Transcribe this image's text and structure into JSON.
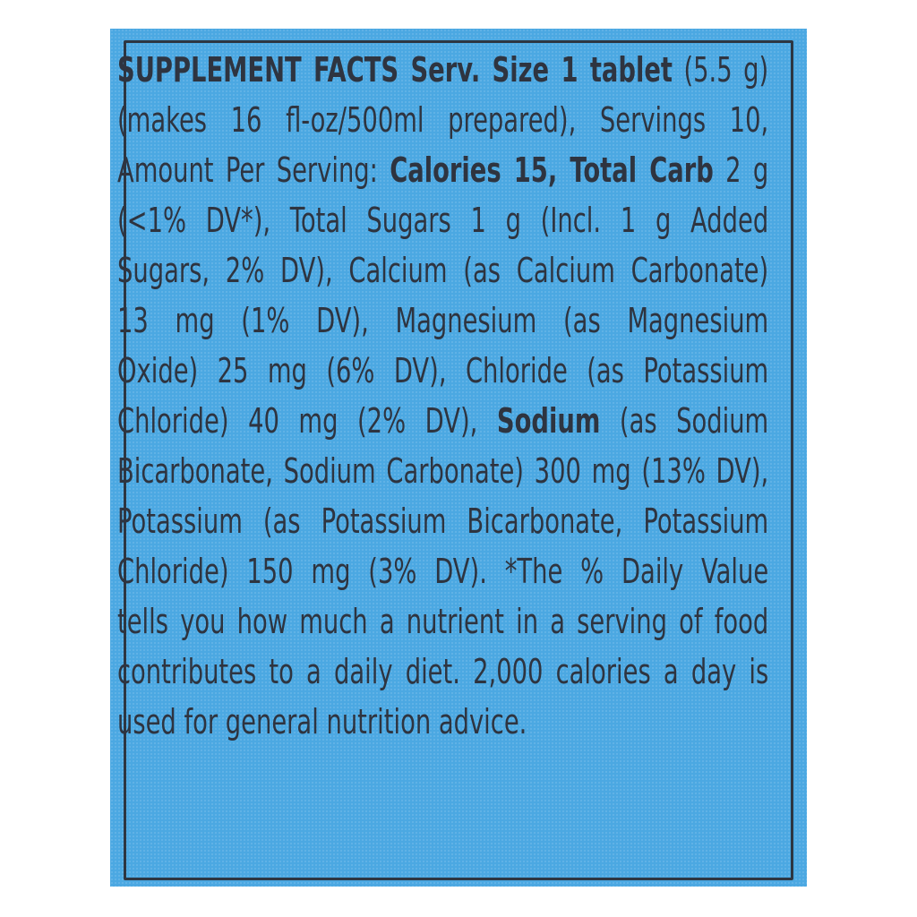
{
  "colors": {
    "background": "#4ba8e2",
    "text": "#2e3440"
  },
  "lines": [
    [
      {
        "t": "SUPPLEMENT FACTS Serv. Size 1 tablet",
        "b": true
      },
      {
        "t": " (5.5 g)",
        "b": false
      }
    ],
    [
      {
        "t": "(makes 16 fl-oz/500ml prepared), Servings 10,",
        "b": false
      }
    ],
    [
      {
        "t": "Amount Per Serving: ",
        "b": false
      },
      {
        "t": "Calories 15, Total Carb",
        "b": true
      },
      {
        "t": " 2 g",
        "b": false
      }
    ],
    [
      {
        "t": "(<1% DV*), Total Sugars 1 g (Incl. 1 g Added",
        "b": false
      }
    ],
    [
      {
        "t": "Sugars, 2% DV), Calcium (as Calcium Carbonate)",
        "b": false
      }
    ],
    [
      {
        "t": "13 mg (1% DV), Magnesium (as Magnesium",
        "b": false
      }
    ],
    [
      {
        "t": "Oxide) 25 mg (6% DV), Chloride (as Potassium",
        "b": false
      }
    ],
    [
      {
        "t": "Chloride) 40 mg (2% DV), ",
        "b": false
      },
      {
        "t": "Sodium",
        "b": true
      },
      {
        "t": " (as Sodium",
        "b": false
      }
    ],
    [
      {
        "t": "Bicarbonate, Sodium Carbonate) 300 mg (13% DV),",
        "b": false
      }
    ],
    [
      {
        "t": "Potassium (as Potassium Bicarbonate, Potassium",
        "b": false
      }
    ],
    [
      {
        "t": "Chloride) 150 mg (3% DV). *The % Daily Value",
        "b": false
      }
    ],
    [
      {
        "t": "tells you how much a nutrient in a serving of food",
        "b": false
      }
    ],
    [
      {
        "t": "contributes to a daily diet. 2,000 calories a day is",
        "b": false
      }
    ],
    [
      {
        "t": "used for general nutrition advice.",
        "b": false
      }
    ]
  ]
}
